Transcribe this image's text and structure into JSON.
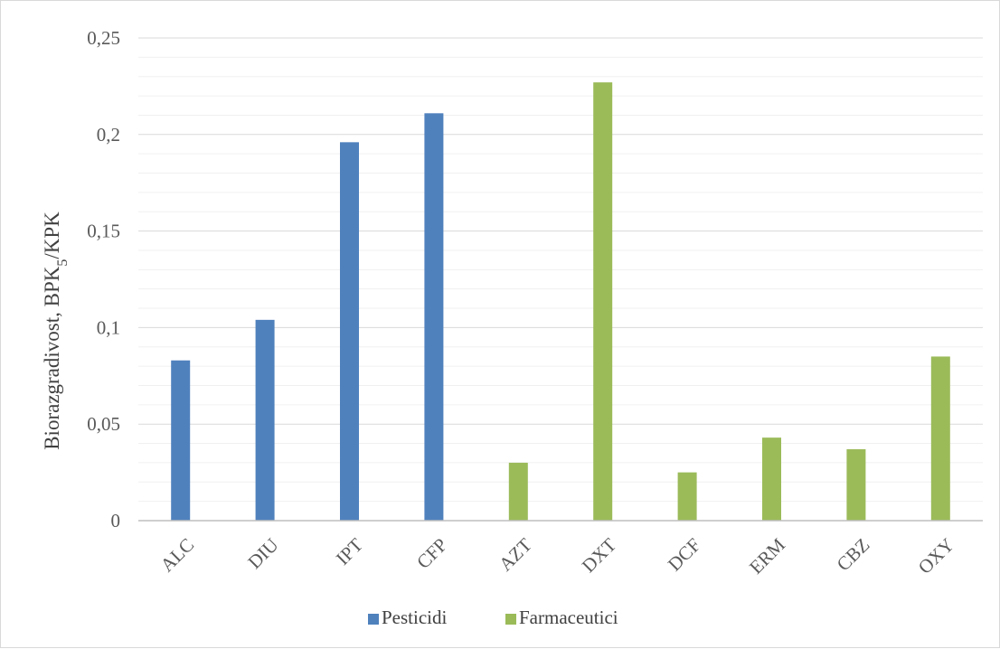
{
  "chart_data": {
    "type": "bar",
    "title": "",
    "xlabel": "",
    "ylabel": {
      "main": "Biorazgradivost,  BPK",
      "sub": "5",
      "tail": "/KPK"
    },
    "ylim": [
      0,
      0.25
    ],
    "yticks": [
      0,
      0.05,
      0.1,
      0.15,
      0.2,
      0.25
    ],
    "ytick_labels": [
      "0",
      "0,05",
      "0,1",
      "0,15",
      "0,2",
      "0,25"
    ],
    "minor_gridlines": true,
    "legend_position": "bottom",
    "categories": [
      "ALC",
      "DIU",
      "IPT",
      "CFP",
      "AZT",
      "DXT",
      "DCF",
      "ERM",
      "CBZ",
      "OXY"
    ],
    "series": [
      {
        "name": "Pesticidi",
        "color": "#4f81bd",
        "values": [
          0.083,
          0.104,
          0.196,
          0.211,
          null,
          null,
          null,
          null,
          null,
          null
        ]
      },
      {
        "name": "Farmaceutici",
        "color": "#9bbb59",
        "values": [
          null,
          null,
          null,
          null,
          0.03,
          0.227,
          0.025,
          0.043,
          0.037,
          0.085
        ]
      }
    ]
  }
}
